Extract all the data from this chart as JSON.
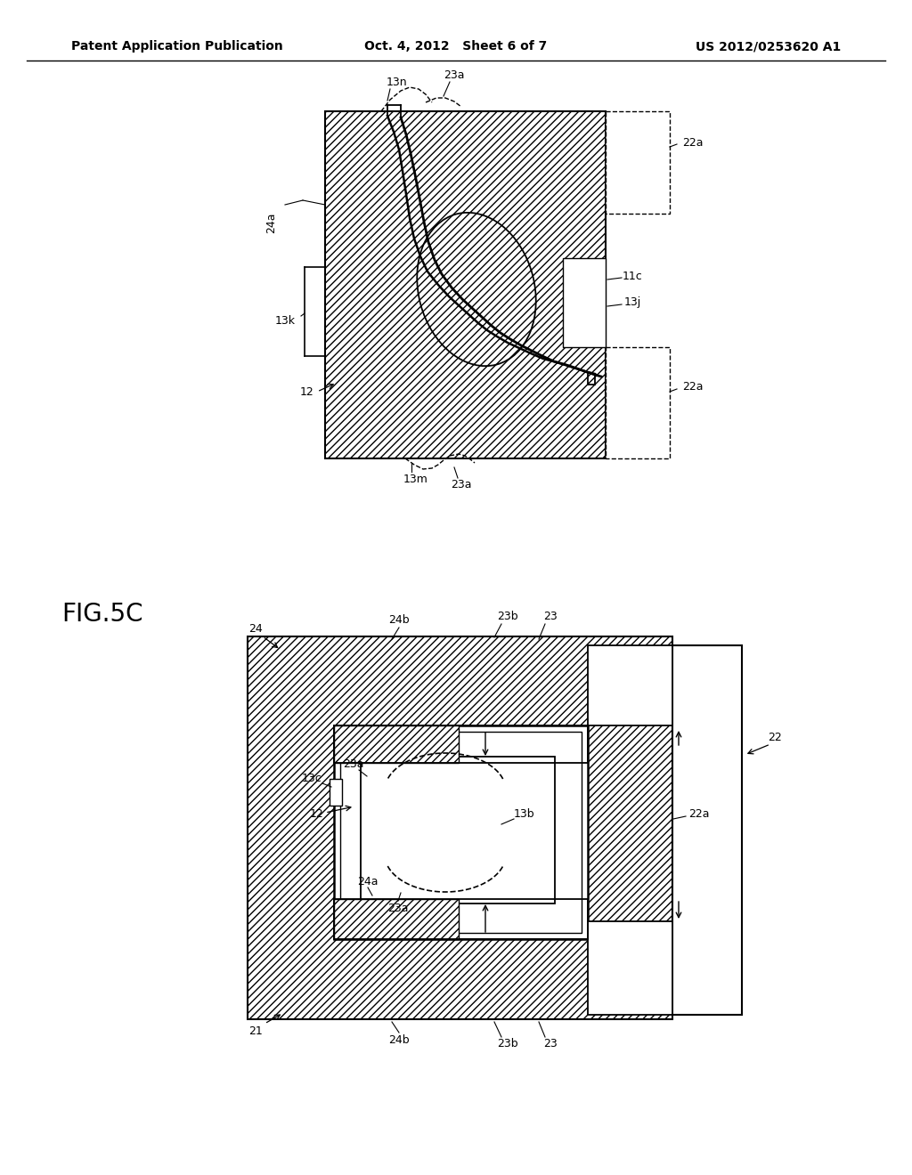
{
  "bg_color": "#ffffff",
  "header_left": "Patent Application Publication",
  "header_center": "Oct. 4, 2012   Sheet 6 of 7",
  "header_right": "US 2012/0253620 A1"
}
